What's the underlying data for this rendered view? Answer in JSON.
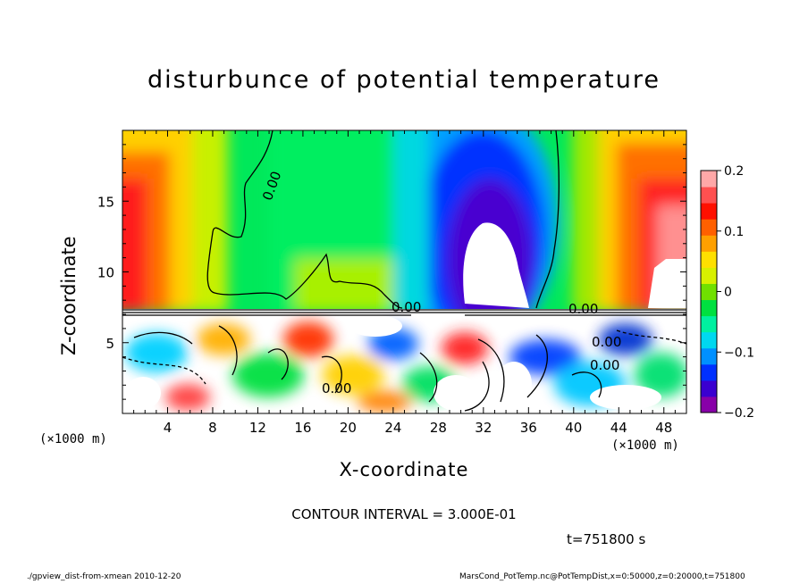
{
  "chart_data": {
    "type": "heatmap",
    "title": "disturbunce of potential temperature",
    "xlabel": "X-coordinate",
    "ylabel": "Z-coordinate",
    "x_unit": "(×1000 m)",
    "xlim": [
      0,
      50
    ],
    "ylim": [
      0,
      20
    ],
    "x_ticks": [
      4,
      8,
      12,
      16,
      20,
      24,
      28,
      32,
      36,
      40,
      44,
      48
    ],
    "y_ticks": [
      5,
      10,
      15
    ],
    "colorbar": {
      "range": [
        -0.2,
        0.2
      ],
      "ticks": [
        0.2,
        0.1,
        0,
        -0.1,
        -0.2
      ],
      "tick_labels": [
        "0.2",
        "0.1",
        "0",
        "−0.1",
        "−0.2"
      ]
    },
    "contour_labels": [
      "0.00",
      "0.00",
      "0.00",
      "0.00",
      "0.00",
      "0.00"
    ],
    "contour_interval": "CONTOUR INTERVAL = 3.000E-01",
    "time_label": "t=751800 s"
  },
  "footer": {
    "left": "./gpview_dist-from-xmean  2010-12-20",
    "right": "MarsCond_PotTemp.nc@PotTempDist,x=0:50000,z=0:20000,t=751800"
  },
  "colors": {
    "ramp": [
      "#8800a8",
      "#3a00d0",
      "#0030ff",
      "#0090ff",
      "#00d8f0",
      "#00f0a0",
      "#00e040",
      "#70e000",
      "#d8f000",
      "#ffe000",
      "#ffa000",
      "#ff6000",
      "#ff1000",
      "#ff5050",
      "#ffa8a8"
    ]
  }
}
